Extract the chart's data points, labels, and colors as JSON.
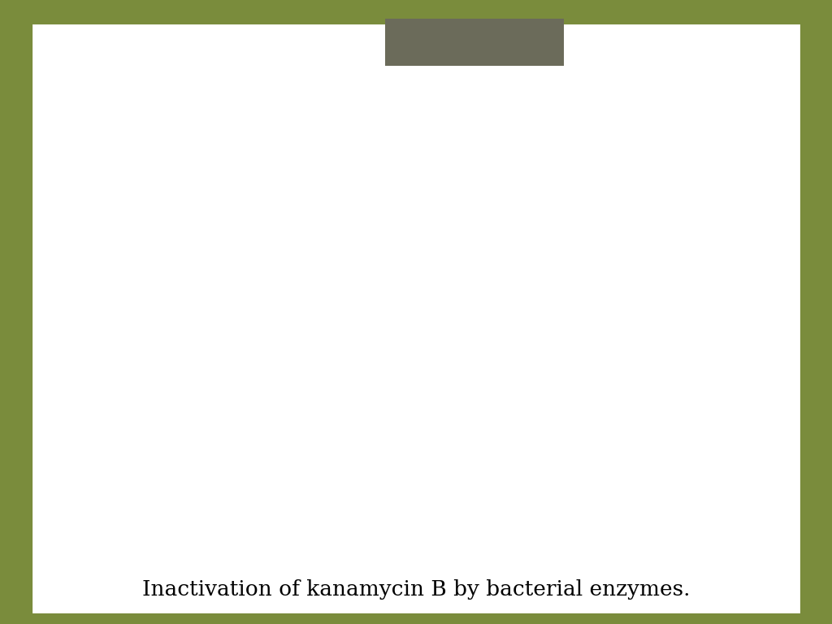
{
  "bg_color": "#7a8c3c",
  "slide_bg": "#ffffff",
  "header_rect_color": "#6b6b5a",
  "title": "Inactivation of kanamycin B by bacterial enzymes.",
  "title_fontsize": 19,
  "circle_color": "red",
  "circle_lw": 2.5,
  "bond_color": "#000000",
  "bond_lw": 1.6,
  "text_color": "#000000",
  "label_fontsize": 13,
  "small_fontsize": 10
}
